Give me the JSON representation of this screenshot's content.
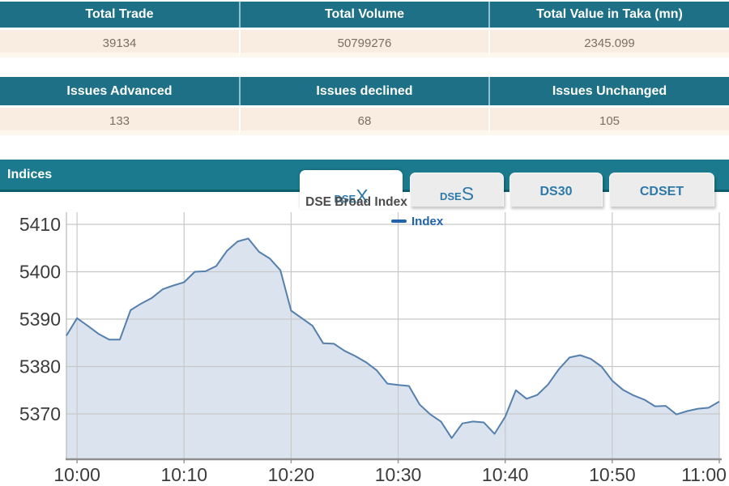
{
  "summary_tables": [
    {
      "columns": [
        {
          "header": "Total Trade",
          "value": "39134"
        },
        {
          "header": "Total Volume",
          "value": "50799276"
        },
        {
          "header": "Total Value in Taka (mn)",
          "value": "2345.099"
        }
      ]
    },
    {
      "columns": [
        {
          "header": "Issues Advanced",
          "value": "133"
        },
        {
          "header": "Issues declined",
          "value": "68"
        },
        {
          "header": "Issues Unchanged",
          "value": "105"
        }
      ]
    }
  ],
  "indices_section": {
    "title": "Indices",
    "tabs": [
      {
        "id": "dsex",
        "label_small": "DSE",
        "label_large": "X",
        "active": true
      },
      {
        "id": "dses",
        "label_small": "DSE",
        "label_large": "S",
        "active": false
      },
      {
        "id": "ds30",
        "label": "DS30",
        "active": false
      },
      {
        "id": "cdset",
        "label": "CDSET",
        "active": false
      }
    ]
  },
  "chart_data": {
    "type": "area",
    "title": "DSE Broad Index",
    "legend": [
      {
        "label": "Index",
        "color": "#2163a8"
      }
    ],
    "legend_position": "top-center",
    "grid": true,
    "x_tick_labels": [
      "10:00",
      "10:10",
      "10:20",
      "10:30",
      "10:40",
      "10:50",
      "11:00"
    ],
    "x_tick_minutes": [
      0,
      10,
      20,
      30,
      40,
      50,
      60
    ],
    "y_tick_labels": [
      "5410",
      "5400",
      "5390",
      "5380",
      "5370"
    ],
    "y_ticks": [
      5410,
      5400,
      5390,
      5380,
      5370
    ],
    "ylim": [
      5360.6,
      5412.6
    ],
    "sample_interval_minutes": 1,
    "start_minute": -1,
    "series": [
      {
        "name": "Index",
        "values": [
          5386.5,
          5390.2,
          5388.6,
          5386.9,
          5385.7,
          5385.7,
          5391.9,
          5393.3,
          5394.5,
          5396.3,
          5397.1,
          5397.8,
          5400.0,
          5400.1,
          5401.2,
          5404.4,
          5406.4,
          5407.0,
          5404.2,
          5402.8,
          5400.3,
          5391.8,
          5390.2,
          5388.6,
          5384.9,
          5384.8,
          5383.3,
          5382.2,
          5380.9,
          5379.2,
          5376.4,
          5376.1,
          5375.9,
          5372.0,
          5369.9,
          5368.4,
          5364.9,
          5368.0,
          5368.4,
          5368.2,
          5365.8,
          5369.4,
          5375.0,
          5373.2,
          5374.0,
          5376.2,
          5379.4,
          5381.9,
          5382.4,
          5381.6,
          5380.0,
          5377.0,
          5375.1,
          5373.9,
          5373.0,
          5371.6,
          5371.7,
          5369.9,
          5370.6,
          5371.1,
          5371.3,
          5372.6
        ]
      }
    ],
    "colors": {
      "line": "#5580ad",
      "fill": "#dbe3ef",
      "grid": "#c8c8c8",
      "axis": "#8f8f8f",
      "tick_text": "#3c3c3c"
    }
  }
}
